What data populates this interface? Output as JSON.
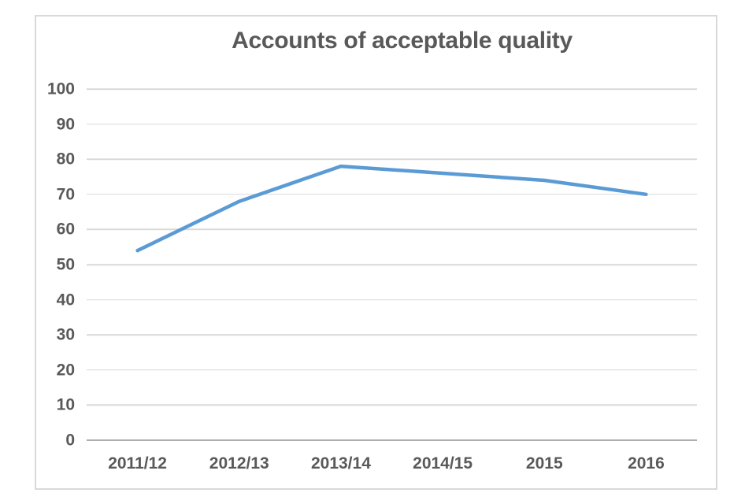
{
  "chart_data": {
    "type": "line",
    "title": "Accounts of acceptable quality",
    "categories": [
      "2011/12",
      "2012/13",
      "2013/14",
      "2014/15",
      "2015",
      "2016"
    ],
    "values": [
      54,
      68,
      78,
      76,
      74,
      70
    ],
    "ylim": [
      0,
      100
    ],
    "ytick_step": 10,
    "yticks": [
      "100",
      "90",
      "80",
      "70",
      "60",
      "50",
      "40",
      "30",
      "20",
      "10",
      "0"
    ],
    "grid": "horizontal",
    "legend": "none",
    "markers": "none",
    "line_color": "#5B9BD5",
    "gridline_color": "#d9d9d9",
    "axis_line_color": "#adadad",
    "text_color": "#595959",
    "frame_border_color": "#d9d9d9",
    "background_color": "#ffffff"
  }
}
